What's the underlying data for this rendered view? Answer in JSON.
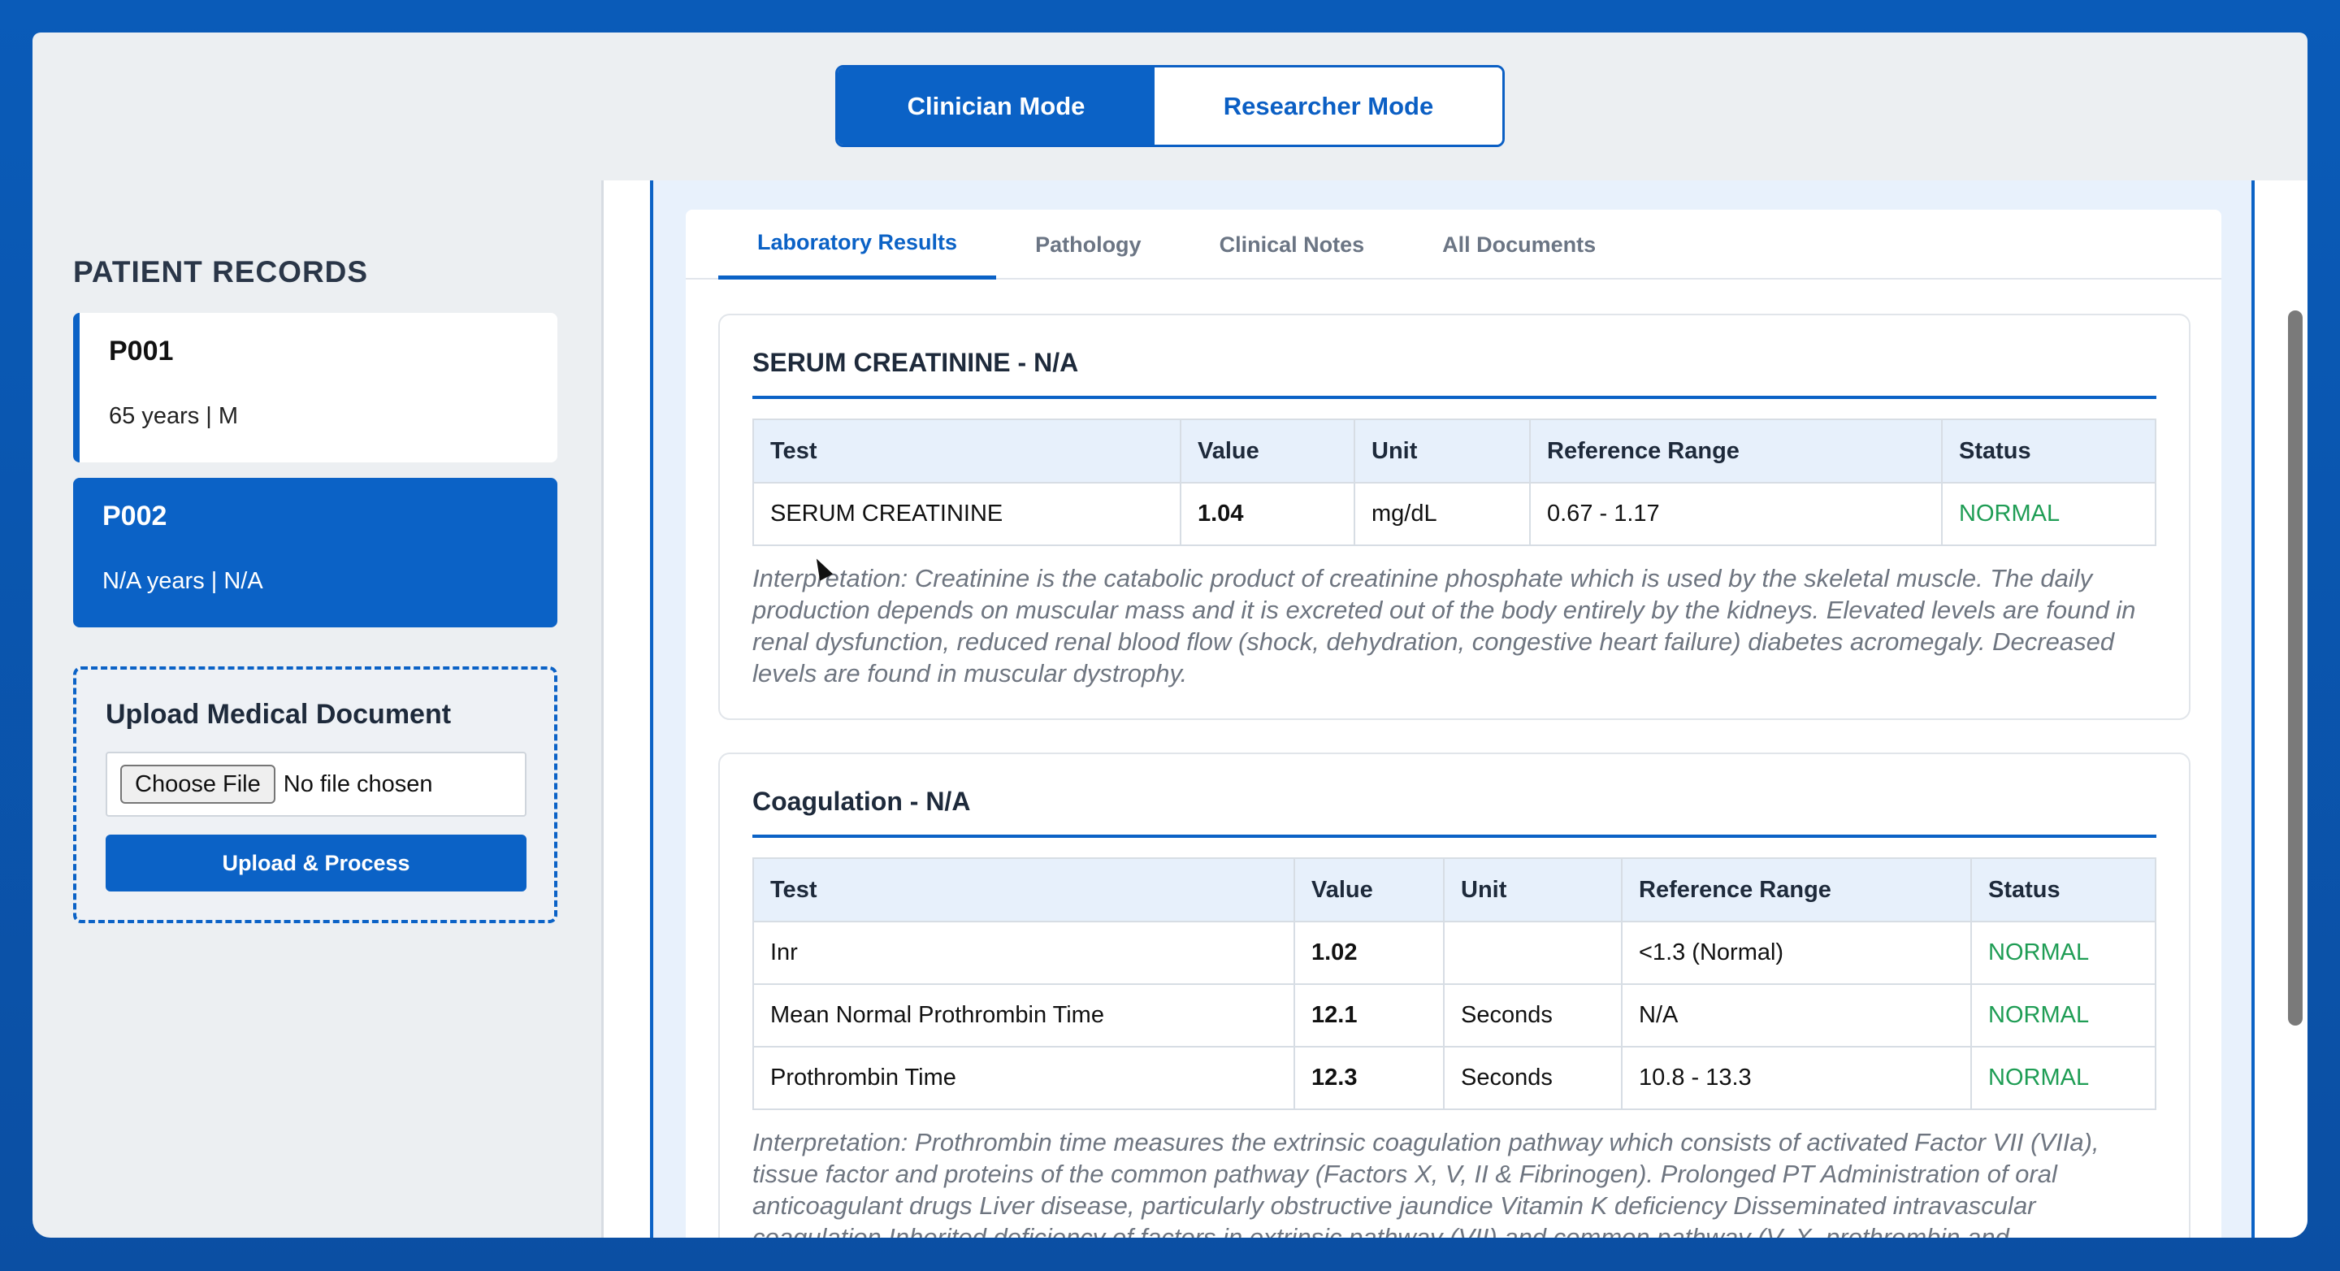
{
  "mode_toggle": {
    "clinician": "Clinician Mode",
    "researcher": "Researcher Mode"
  },
  "sidebar": {
    "title": "PATIENT RECORDS",
    "patients": [
      {
        "id": "P001",
        "meta": "65 years | M"
      },
      {
        "id": "P002",
        "meta": "N/A years | N/A"
      }
    ],
    "upload": {
      "title": "Upload Medical Document",
      "choose_file": "Choose File",
      "no_file": "No file chosen",
      "button": "Upload & Process"
    }
  },
  "tabs": [
    "Laboratory Results",
    "Pathology",
    "Clinical Notes",
    "All Documents"
  ],
  "table_headers": [
    "Test",
    "Value",
    "Unit",
    "Reference Range",
    "Status"
  ],
  "sections": [
    {
      "title": "SERUM CREATININE - N/A",
      "rows": [
        {
          "test": "SERUM CREATININE",
          "value": "1.04",
          "unit": "mg/dL",
          "range": "0.67 - 1.17",
          "status": "NORMAL"
        }
      ],
      "interpretation": "Interpretation: Creatinine is the catabolic product of creatinine phosphate which is used by the skeletal muscle. The daily production depends on muscular mass and it is excreted out of the body entirely by the kidneys. Elevated levels are found in renal dysfunction, reduced renal blood flow (shock, dehydration, congestive heart failure) diabetes acromegaly. Decreased levels are found in muscular dystrophy."
    },
    {
      "title": "Coagulation - N/A",
      "rows": [
        {
          "test": "Inr",
          "value": "1.02",
          "unit": "",
          "range": "<1.3 (Normal)",
          "status": "NORMAL"
        },
        {
          "test": "Mean Normal Prothrombin Time",
          "value": "12.1",
          "unit": "Seconds",
          "range": "N/A",
          "status": "NORMAL"
        },
        {
          "test": "Prothrombin Time",
          "value": "12.3",
          "unit": "Seconds",
          "range": "10.8 - 13.3",
          "status": "NORMAL"
        }
      ],
      "interpretation": "Interpretation: Prothrombin time measures the extrinsic coagulation pathway which consists of activated Factor VII (VIIa), tissue factor and proteins of the common pathway (Factors X, V, II & Fibrinogen). Prolonged PT Administration of oral anticoagulant drugs Liver disease, particularly obstructive jaundice Vitamin K deficiency Disseminated intravascular coagulation Inherited deficiency of factors in extrinsic pathway (VII) and common pathway (V, X, prothrombin and"
    }
  ]
}
